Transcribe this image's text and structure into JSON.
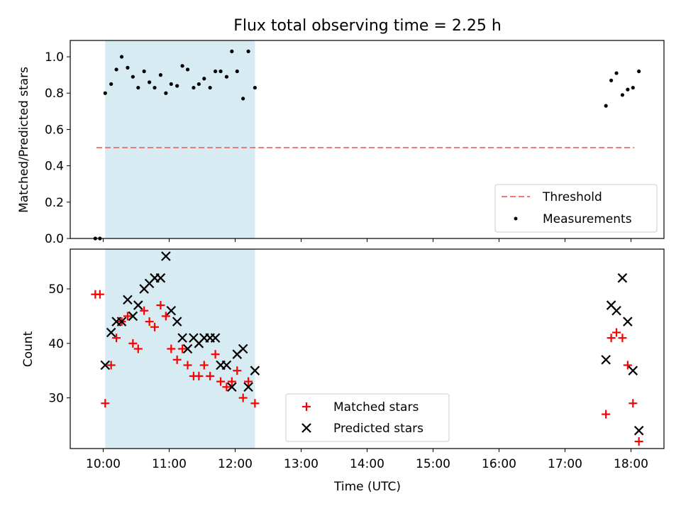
{
  "chart_data": {
    "type": "scatter",
    "title": "Flux total observing time = 2.25 h",
    "xlabel": "Time (UTC)",
    "x_unit": "hours UTC",
    "xlim": [
      9.5,
      18.5
    ],
    "x_ticks": [
      10,
      11,
      12,
      13,
      14,
      15,
      16,
      17,
      18
    ],
    "x_tick_labels": [
      "10:00",
      "11:00",
      "12:00",
      "13:00",
      "14:00",
      "15:00",
      "16:00",
      "17:00",
      "18:00"
    ],
    "highlight_span": {
      "start": 10.03,
      "end": 12.3,
      "color": "#add8e6"
    },
    "top_panel": {
      "ylabel": "Matched/Predicted stars",
      "ylim": [
        0,
        1.09
      ],
      "y_ticks": [
        0.0,
        0.2,
        0.4,
        0.6,
        0.8,
        1.0
      ],
      "y_tick_labels": [
        "0.0",
        "0.2",
        "0.4",
        "0.6",
        "0.8",
        "1.0"
      ],
      "legend": {
        "position": "lower right",
        "threshold_label": "Threshold",
        "measurements_label": "Measurements"
      },
      "threshold": {
        "name": "Threshold",
        "value": 0.5,
        "x_range": [
          9.9,
          18.05
        ],
        "color": "#f07878",
        "dash": true
      },
      "measurements": {
        "name": "Measurements",
        "color": "#000000",
        "points": [
          [
            9.88,
            0.0
          ],
          [
            9.95,
            0.0
          ],
          [
            10.03,
            0.8
          ],
          [
            10.12,
            0.85
          ],
          [
            10.2,
            0.93
          ],
          [
            10.28,
            1.0
          ],
          [
            10.37,
            0.94
          ],
          [
            10.45,
            0.89
          ],
          [
            10.53,
            0.83
          ],
          [
            10.62,
            0.92
          ],
          [
            10.7,
            0.86
          ],
          [
            10.78,
            0.83
          ],
          [
            10.87,
            0.9
          ],
          [
            10.95,
            0.8
          ],
          [
            11.03,
            0.85
          ],
          [
            11.12,
            0.84
          ],
          [
            11.2,
            0.95
          ],
          [
            11.28,
            0.93
          ],
          [
            11.37,
            0.83
          ],
          [
            11.45,
            0.85
          ],
          [
            11.53,
            0.88
          ],
          [
            11.62,
            0.83
          ],
          [
            11.7,
            0.92
          ],
          [
            11.78,
            0.92
          ],
          [
            11.87,
            0.89
          ],
          [
            11.95,
            1.03
          ],
          [
            12.03,
            0.92
          ],
          [
            12.12,
            0.77
          ],
          [
            12.2,
            1.03
          ],
          [
            12.3,
            0.83
          ],
          [
            17.62,
            0.73
          ],
          [
            17.7,
            0.87
          ],
          [
            17.78,
            0.91
          ],
          [
            17.87,
            0.79
          ],
          [
            17.95,
            0.82
          ],
          [
            18.03,
            0.83
          ],
          [
            18.12,
            0.92
          ]
        ]
      }
    },
    "bottom_panel": {
      "ylabel": "Count",
      "ylim": [
        20.7,
        57.3
      ],
      "y_ticks": [
        30,
        40,
        50
      ],
      "y_tick_labels": [
        "30",
        "40",
        "50"
      ],
      "legend": {
        "position": "lower center",
        "matched_label": "Matched stars",
        "predicted_label": "Predicted stars"
      },
      "series": [
        {
          "name": "Matched stars",
          "marker": "plus",
          "color": "#ff0000",
          "points": [
            [
              9.88,
              49
            ],
            [
              9.95,
              49
            ],
            [
              10.03,
              29
            ],
            [
              10.12,
              36
            ],
            [
              10.2,
              41
            ],
            [
              10.28,
              44
            ],
            [
              10.37,
              45
            ],
            [
              10.45,
              40
            ],
            [
              10.53,
              39
            ],
            [
              10.62,
              46
            ],
            [
              10.7,
              44
            ],
            [
              10.78,
              43
            ],
            [
              10.87,
              47
            ],
            [
              10.95,
              45
            ],
            [
              11.03,
              39
            ],
            [
              11.12,
              37
            ],
            [
              11.2,
              39
            ],
            [
              11.28,
              36
            ],
            [
              11.37,
              34
            ],
            [
              11.45,
              34
            ],
            [
              11.53,
              36
            ],
            [
              11.62,
              34
            ],
            [
              11.7,
              38
            ],
            [
              11.78,
              33
            ],
            [
              11.87,
              32
            ],
            [
              11.95,
              33
            ],
            [
              12.03,
              35
            ],
            [
              12.12,
              30
            ],
            [
              12.2,
              33
            ],
            [
              12.3,
              29
            ],
            [
              17.62,
              27
            ],
            [
              17.7,
              41
            ],
            [
              17.78,
              42
            ],
            [
              17.87,
              41
            ],
            [
              17.95,
              36
            ],
            [
              18.03,
              29
            ],
            [
              18.12,
              22
            ]
          ]
        },
        {
          "name": "Predicted stars",
          "marker": "x",
          "color": "#000000",
          "points": [
            [
              10.03,
              36
            ],
            [
              10.12,
              42
            ],
            [
              10.2,
              44
            ],
            [
              10.28,
              44
            ],
            [
              10.37,
              48
            ],
            [
              10.45,
              45
            ],
            [
              10.53,
              47
            ],
            [
              10.62,
              50
            ],
            [
              10.7,
              51
            ],
            [
              10.78,
              52
            ],
            [
              10.87,
              52
            ],
            [
              10.95,
              56
            ],
            [
              11.03,
              46
            ],
            [
              11.12,
              44
            ],
            [
              11.2,
              41
            ],
            [
              11.28,
              39
            ],
            [
              11.37,
              41
            ],
            [
              11.45,
              40
            ],
            [
              11.53,
              41
            ],
            [
              11.62,
              41
            ],
            [
              11.7,
              41
            ],
            [
              11.78,
              36
            ],
            [
              11.87,
              36
            ],
            [
              11.95,
              32
            ],
            [
              12.03,
              38
            ],
            [
              12.12,
              39
            ],
            [
              12.2,
              32
            ],
            [
              12.3,
              35
            ],
            [
              17.62,
              37
            ],
            [
              17.7,
              47
            ],
            [
              17.78,
              46
            ],
            [
              17.87,
              52
            ],
            [
              17.95,
              44
            ],
            [
              18.03,
              35
            ],
            [
              18.12,
              24
            ]
          ]
        }
      ]
    }
  }
}
